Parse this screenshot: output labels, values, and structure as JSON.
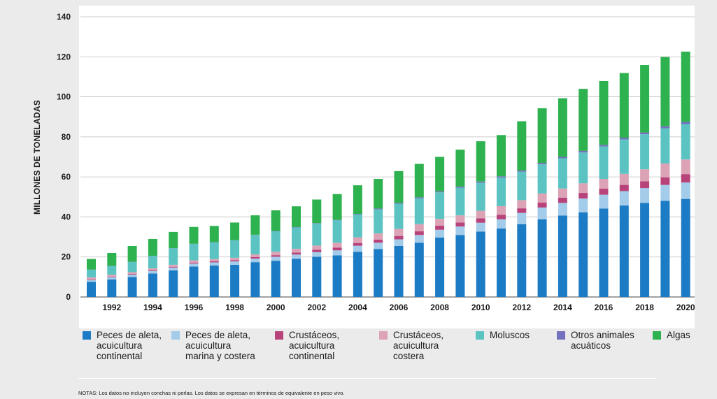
{
  "chart_data": {
    "type": "bar",
    "stacked": true,
    "ylabel": "MILLONES DE TONELADAS",
    "ylim": [
      0,
      140
    ],
    "yticks": [
      0,
      20,
      40,
      60,
      80,
      100,
      120,
      140
    ],
    "grid": true,
    "legend_position": "bottom",
    "categories": [
      "1991",
      "1992",
      "1993",
      "1994",
      "1995",
      "1996",
      "1997",
      "1998",
      "1999",
      "2000",
      "2001",
      "2002",
      "2003",
      "2004",
      "2005",
      "2006",
      "2007",
      "2008",
      "2009",
      "2010",
      "2011",
      "2012",
      "2013",
      "2014",
      "2015",
      "2016",
      "2017",
      "2018",
      "2019",
      "2020"
    ],
    "xtick_labels": [
      "",
      "1992",
      "",
      "1994",
      "",
      "1996",
      "",
      "1998",
      "",
      "2000",
      "",
      "2002",
      "",
      "2004",
      "",
      "2006",
      "",
      "2008",
      "",
      "2010",
      "",
      "2012",
      "",
      "2014",
      "",
      "2016",
      "",
      "2018",
      "",
      "2020"
    ],
    "series": [
      {
        "name": "Peces de aleta,\nacuicultura\ncontinental",
        "color": "#1b7bc4",
        "values": [
          7.5,
          8.8,
          10,
          11.7,
          13.3,
          15.2,
          15.7,
          16.1,
          17.4,
          18.1,
          19.1,
          20.1,
          20.8,
          22.6,
          24,
          25.5,
          27.1,
          29.7,
          31,
          32.7,
          34.2,
          36.4,
          38.8,
          40.7,
          42.3,
          44.2,
          45.7,
          47,
          48,
          49
        ]
      },
      {
        "name": "Peces de aleta,\nacuicultura\nmarina y costera",
        "color": "#a3cbea",
        "values": [
          1,
          1.1,
          1.2,
          1.3,
          1.4,
          1.5,
          1.6,
          1.7,
          1.8,
          2.0,
          2.1,
          2.3,
          2.5,
          3.0,
          3.1,
          3.3,
          3.9,
          3.9,
          4.2,
          4.4,
          4.6,
          5.6,
          5.9,
          6.3,
          6.9,
          6.9,
          7.2,
          7.4,
          8,
          8.2
        ]
      },
      {
        "name": "Crustáceos,\nacuicultura\ncontinental",
        "color": "#b8437a",
        "values": [
          0.3,
          0.3,
          0.4,
          0.4,
          0.4,
          0.5,
          0.5,
          0.6,
          0.7,
          0.8,
          1.0,
          1.2,
          1.4,
          1.4,
          1.6,
          1.7,
          1.8,
          2.0,
          2.0,
          2.2,
          2.3,
          2.3,
          2.5,
          2.6,
          2.8,
          3.0,
          3.1,
          3.4,
          3.8,
          4.2
        ]
      },
      {
        "name": "Crustáceos,\nacuicultura\ncostera",
        "color": "#dca3b6",
        "values": [
          1,
          0.9,
          0.8,
          0.9,
          1.0,
          1.1,
          1.1,
          1.2,
          1.4,
          1.7,
          1.9,
          2.1,
          2.4,
          2.8,
          3.1,
          3.5,
          3.6,
          3.4,
          3.6,
          3.8,
          4.3,
          4.1,
          4.5,
          4.6,
          4.8,
          4.9,
          5.5,
          6,
          6.9,
          7.3
        ]
      },
      {
        "name": "Moluscos",
        "color": "#5bc4c2",
        "values": [
          3.8,
          4.3,
          5.1,
          6.2,
          8.2,
          8.2,
          8.4,
          8.7,
          9.7,
          10.2,
          10.6,
          11,
          11.2,
          11.4,
          12,
          12.6,
          12.9,
          13.3,
          13.8,
          14,
          14.3,
          14.2,
          14.6,
          15.1,
          15.4,
          16.2,
          17.2,
          17.5,
          17.6,
          17.7
        ]
      },
      {
        "name": "Otros animales\nacuáticos",
        "color": "#7470bd",
        "values": [
          0.1,
          0.1,
          0.1,
          0.1,
          0.1,
          0.1,
          0.1,
          0.1,
          0.1,
          0.2,
          0.2,
          0.2,
          0.2,
          0.3,
          0.4,
          0.4,
          0.5,
          0.5,
          0.5,
          0.6,
          0.6,
          0.6,
          0.7,
          0.7,
          0.8,
          0.8,
          0.9,
          0.9,
          1.0,
          1.1
        ]
      },
      {
        "name": "Algas",
        "color": "#2eb24f",
        "values": [
          5.3,
          6.5,
          7.9,
          8.4,
          8.1,
          8.4,
          8.1,
          8.8,
          9.7,
          10.3,
          10.4,
          11.8,
          12.9,
          14.3,
          14.8,
          15.9,
          16.7,
          17.2,
          18.5,
          20.1,
          20.6,
          24.6,
          27.3,
          29.3,
          31,
          31.9,
          32.3,
          33.7,
          34.6,
          35.1
        ]
      }
    ]
  },
  "note": "NOTAS: Los datos no incluyen conchas ni perlas. Los datos se expresan en términos de equivalente en peso vivo."
}
